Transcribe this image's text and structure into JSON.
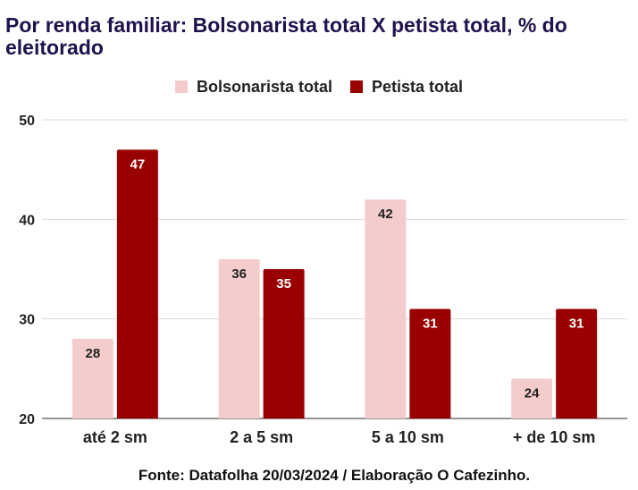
{
  "title": "Por renda familiar: Bolsonarista total X petista total, % do eleitorado",
  "source": "Fonte: Datafolha 20/03/2024 / Elaboração O Cafezinho.",
  "chart_data": {
    "type": "bar",
    "categories": [
      "até 2 sm",
      "2 a 5 sm",
      "5 a 10 sm",
      "+ de 10 sm"
    ],
    "series": [
      {
        "name": "Bolsonarista total",
        "values": [
          28,
          36,
          42,
          24
        ],
        "color": "#f4cccc",
        "label_color": "#222222"
      },
      {
        "name": "Petista total",
        "values": [
          47,
          35,
          31,
          31
        ],
        "color": "#990000",
        "label_color": "#ffffff"
      }
    ],
    "yticks": [
      20,
      30,
      40,
      50
    ],
    "ylim": [
      20,
      50
    ],
    "grid": true,
    "legend_position": "top-center",
    "data_labels": true
  }
}
